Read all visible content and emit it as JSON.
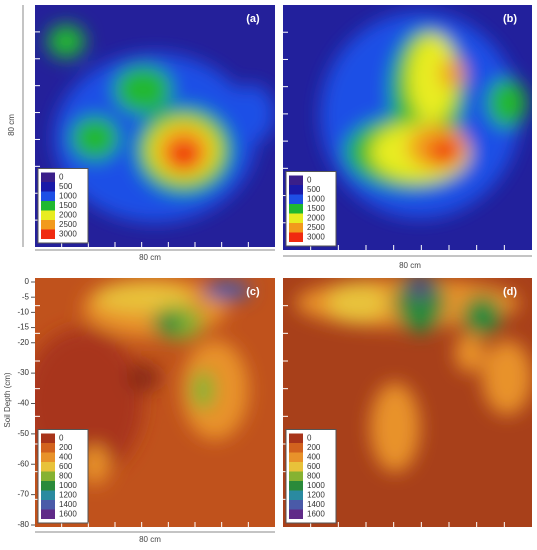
{
  "panels": [
    {
      "label": "(a)",
      "legend": {
        "values": [
          0,
          500,
          1000,
          1500,
          2000,
          2500,
          3000
        ],
        "colors": [
          "#3a1f8a",
          "#1a1aa8",
          "#1e4fe6",
          "#20b830",
          "#e8ec20",
          "#f29a1c",
          "#f02a10"
        ]
      }
    },
    {
      "label": "(b)",
      "legend": {
        "values": [
          0,
          500,
          1000,
          1500,
          2000,
          2500,
          3000
        ],
        "colors": [
          "#3a1f8a",
          "#1a1aa8",
          "#1e4fe6",
          "#20b830",
          "#e8ec20",
          "#f29a1c",
          "#f02a10"
        ]
      }
    },
    {
      "label": "(c)",
      "legend": {
        "values": [
          0,
          200,
          400,
          600,
          800,
          1000,
          1200,
          1400,
          1600
        ],
        "colors": [
          "#a8341a",
          "#d2621e",
          "#e8922a",
          "#e8c23a",
          "#86b232",
          "#2a8a3a",
          "#2a8aa0",
          "#4a5aa8",
          "#602a88"
        ]
      }
    },
    {
      "label": "(d)",
      "legend": {
        "values": [
          0,
          200,
          400,
          600,
          800,
          1000,
          1200,
          1400,
          1600
        ],
        "colors": [
          "#a8341a",
          "#d2621e",
          "#e8922a",
          "#e8c23a",
          "#86b232",
          "#2a8a3a",
          "#2a8aa0",
          "#4a5aa8",
          "#602a88"
        ]
      }
    }
  ],
  "x_axis_labels": [
    "80 cm",
    "80 cm",
    "80 cm"
  ],
  "y_axis_label": "80 cm",
  "depth_axis": {
    "title": "Soil Depth (cm)",
    "ticks": [
      0,
      -5,
      -10,
      -15,
      -20,
      -30,
      -40,
      -50,
      -60,
      -70,
      -80
    ]
  }
}
